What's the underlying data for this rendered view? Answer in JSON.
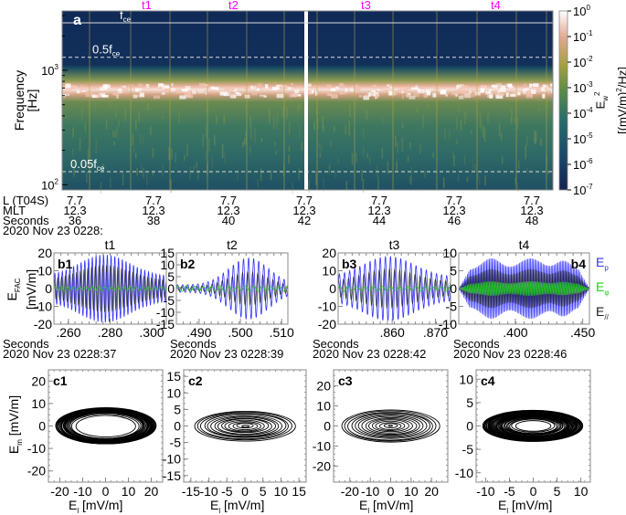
{
  "colors": {
    "marker": "#ff00ff",
    "e_perp": "#3333ff",
    "e_phi": "#22cc22",
    "e_par": "#222222",
    "guide_line": "#dddddd"
  },
  "spectrogram": {
    "panel_label": "a",
    "ylabel_line1": "Frequency",
    "ylabel_line2": "[Hz]",
    "yticks": [
      {
        "base": "10",
        "exp": "3"
      },
      {
        "base": "10",
        "exp": "2"
      }
    ],
    "guides": [
      {
        "label": "f",
        "sub": "ce",
        "freq": 2600,
        "style": "solid"
      },
      {
        "label": "0.5f",
        "sub": "ce",
        "freq": 1300,
        "style": "dashed"
      },
      {
        "label": "0.05f",
        "sub": "ce",
        "freq": 130,
        "style": "dashed"
      }
    ],
    "markers": [
      "t1",
      "t2",
      "t3",
      "t4"
    ],
    "colorbar": {
      "label_main": "E",
      "label_sub": "w",
      "label_sup": "2",
      "label_units": "[(mV/m)",
      "label_units_sup": "2",
      "label_units_tail": "/Hz]",
      "ticks": [
        {
          "base": "10",
          "exp": "0"
        },
        {
          "base": "10",
          "exp": "-1"
        },
        {
          "base": "10",
          "exp": "-2"
        },
        {
          "base": "10",
          "exp": "-3"
        },
        {
          "base": "10",
          "exp": "-4"
        },
        {
          "base": "10",
          "exp": "-5"
        },
        {
          "base": "10",
          "exp": "-6"
        },
        {
          "base": "10",
          "exp": "-7"
        }
      ]
    }
  },
  "info": {
    "row_labels": [
      "L (T04S)",
      "MLT",
      "Seconds"
    ],
    "date_label": "2020 Nov 23 0228:",
    "columns": [
      {
        "l": "7.7",
        "mlt": "12.3",
        "sec": "36"
      },
      {
        "l": "7.7",
        "mlt": "12.3",
        "sec": "38"
      },
      {
        "l": "7.7",
        "mlt": "12.3",
        "sec": "40"
      },
      {
        "l": "7.7",
        "mlt": "12.3",
        "sec": "42"
      },
      {
        "l": "7.7",
        "mlt": "12.3",
        "sec": "44"
      },
      {
        "l": "7.7",
        "mlt": "12.3",
        "sec": "46"
      },
      {
        "l": "7.7",
        "mlt": "12.3",
        "sec": "48"
      }
    ]
  },
  "waveform_ylabel": {
    "main": "E",
    "sub": "FAC",
    "units": "[mV/m]"
  },
  "hodo_ylabel": {
    "main": "E",
    "sub": "m",
    "units": "[mV/m]"
  },
  "hodo_xlabel": {
    "main": "E",
    "sub": "l",
    "units": "[mV/m]"
  },
  "legend": [
    {
      "main": "E",
      "sub": "p",
      "color_key": "e_perp"
    },
    {
      "main": "E",
      "sub": "φ",
      "color_key": "e_phi"
    },
    {
      "main": "E",
      "sub": "//",
      "color_key": "e_par"
    }
  ],
  "chart_data": [
    {
      "type": "heatmap",
      "title": "a",
      "xlabel": "Seconds (2020 Nov 23 0228:)",
      "ylabel": "Frequency [Hz]",
      "xlim": [
        35,
        49
      ],
      "ylim": [
        90,
        3300
      ],
      "yscale": "log",
      "colorbar_range": [
        1e-07,
        1
      ],
      "colorbar_label": "Ew^2 [(mV/m)^2/Hz]",
      "band_center_hz": 680,
      "band_peak": 0.1,
      "background": 1e-06
    },
    {
      "type": "line",
      "id": "b1",
      "title": "t1",
      "panel": "b1",
      "xlabel": "Seconds",
      "date": "2020 Nov 23 0228:37",
      "xticks": [
        ".260",
        ".280",
        ".300"
      ],
      "xlim": [
        0.253,
        0.307
      ],
      "yticks": [
        "20",
        "10",
        "0",
        "-10",
        "-20"
      ],
      "ylim": [
        -20,
        20
      ],
      "series": [
        {
          "name": "Ep",
          "amp": 19,
          "envelope": "peak-mid"
        },
        {
          "name": "E//",
          "amp": 13,
          "envelope": "peak-mid"
        },
        {
          "name": "Eφ",
          "amp": 1.2,
          "envelope": "flat"
        }
      ]
    },
    {
      "type": "line",
      "id": "b2",
      "title": "t2",
      "panel": "b2",
      "xlabel": "Seconds",
      "date": "2020 Nov 23 0228:39",
      "xticks": [
        ".490",
        ".500",
        ".510"
      ],
      "xlim": [
        0.4845,
        0.5115
      ],
      "yticks": [
        "15",
        "10",
        "5",
        "0",
        "-5",
        "-10",
        "-15"
      ],
      "ylim": [
        -15,
        15
      ],
      "series": [
        {
          "name": "Ep",
          "amp": 13,
          "envelope": "peak-right"
        },
        {
          "name": "E//",
          "amp": 7,
          "envelope": "peak-right"
        },
        {
          "name": "Eφ",
          "amp": 1.2,
          "envelope": "flat"
        }
      ]
    },
    {
      "type": "line",
      "id": "b3",
      "title": "t3",
      "panel": "b3",
      "xlabel": "Seconds",
      "date": "2020 Nov 23 0228:42",
      "xticks": [
        ".860",
        ".870"
      ],
      "xlim": [
        0.8475,
        0.8735
      ],
      "yticks": [
        "20",
        "10",
        "0",
        "-10",
        "-20"
      ],
      "ylim": [
        -22,
        22
      ],
      "series": [
        {
          "name": "Ep",
          "amp": 20,
          "envelope": "peak-mid"
        },
        {
          "name": "E//",
          "amp": 12,
          "envelope": "peak-mid"
        },
        {
          "name": "Eφ",
          "amp": 1.5,
          "envelope": "flat"
        }
      ]
    },
    {
      "type": "line",
      "id": "b4",
      "title": "t4",
      "panel": "b4",
      "xlabel": "Seconds",
      "date": "2020 Nov 23 0228:46",
      "xticks": [
        ".400",
        ".450"
      ],
      "xlim": [
        0.358,
        0.455
      ],
      "yticks": [
        "10",
        "5",
        "0",
        "-5",
        "-10"
      ],
      "ylim": [
        -10,
        10
      ],
      "series": [
        {
          "name": "Ep",
          "amp": 8.5,
          "envelope": "triple"
        },
        {
          "name": "E//",
          "amp": 5.5,
          "envelope": "triple"
        },
        {
          "name": "Eφ",
          "amp": 2,
          "envelope": "triple"
        }
      ]
    },
    {
      "type": "scatter",
      "id": "c1",
      "panel": "c1",
      "xlabel": "El [mV/m]",
      "ylabel": "Em [mV/m]",
      "xticks": [
        "-20",
        "-10",
        "0",
        "10",
        "20"
      ],
      "xlim": [
        -25,
        25
      ],
      "yticks": [
        "20",
        "10",
        "0",
        "-10",
        "-20"
      ],
      "ylim": [
        -25,
        25
      ],
      "ellipse_max": {
        "a": 22,
        "b": 8
      },
      "ellipse_min": {
        "a": 8,
        "b": 3
      }
    },
    {
      "type": "scatter",
      "id": "c2",
      "panel": "c2",
      "xlabel": "El [mV/m]",
      "ylabel": "Em [mV/m]",
      "xticks": [
        "-15",
        "-10",
        "-5",
        "0",
        "5",
        "10",
        "15"
      ],
      "xlim": [
        -17,
        17
      ],
      "yticks": [
        "15",
        "10",
        "5",
        "0",
        "-5",
        "-10",
        "-15"
      ],
      "ylim": [
        -17,
        17
      ],
      "ellipse_max": {
        "a": 14,
        "b": 4.5
      },
      "ellipse_min": {
        "a": 1,
        "b": 0.3
      }
    },
    {
      "type": "scatter",
      "id": "c3",
      "panel": "c3",
      "xlabel": "El [mV/m]",
      "ylabel": "Em [mV/m]",
      "xticks": [
        "-20",
        "-10",
        "0",
        "10",
        "20"
      ],
      "xlim": [
        -28,
        28
      ],
      "yticks": [
        "20",
        "10",
        "0",
        "-10",
        "-20"
      ],
      "ylim": [
        -28,
        28
      ],
      "ellipse_max": {
        "a": 24,
        "b": 8
      },
      "ellipse_min": {
        "a": 1,
        "b": 0.3
      }
    },
    {
      "type": "scatter",
      "id": "c4",
      "panel": "c4",
      "xlabel": "El [mV/m]",
      "ylabel": "Em [mV/m]",
      "xticks": [
        "-10",
        "-5",
        "0",
        "5",
        "10"
      ],
      "xlim": [
        -12,
        12
      ],
      "yticks": [
        "10",
        "5",
        "0",
        "-5",
        "-10"
      ],
      "ylim": [
        -12,
        12
      ],
      "ellipse_max": {
        "a": 10.5,
        "b": 3.3
      },
      "ellipse_min": {
        "a": 2,
        "b": 0.6
      }
    }
  ]
}
